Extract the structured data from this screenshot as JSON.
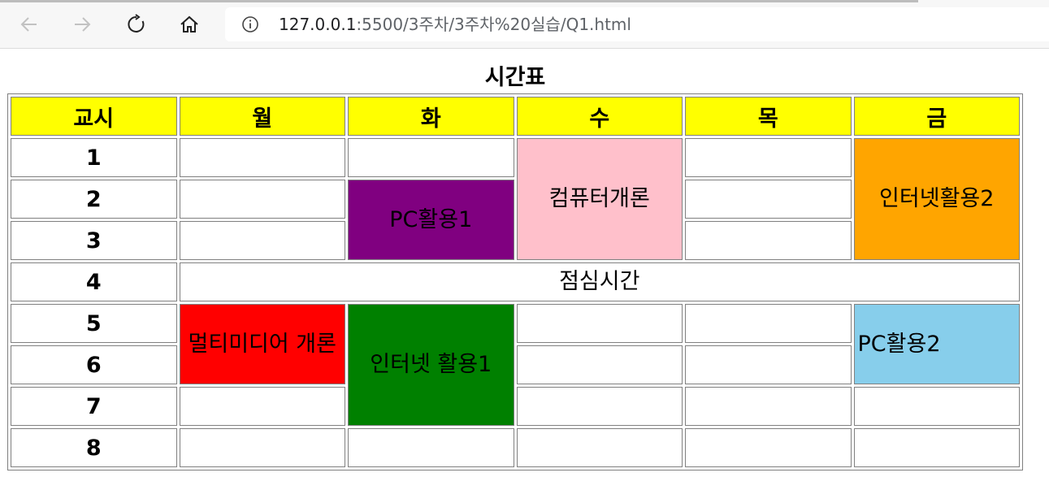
{
  "browser": {
    "url_host": "127.0.0.1",
    "url_path": ":5500/3주차/3주차%20실습/Q1.html",
    "back_icon": "back-arrow-icon",
    "forward_icon": "forward-arrow-icon",
    "reload_icon": "reload-icon",
    "home_icon": "home-icon",
    "info_icon": "info-icon"
  },
  "timetable": {
    "title": "시간표",
    "headers": [
      "교시",
      "월",
      "화",
      "수",
      "목",
      "금"
    ],
    "periods": [
      "1",
      "2",
      "3",
      "4",
      "5",
      "6",
      "7",
      "8"
    ],
    "subjects": {
      "pc1": "PC활용1",
      "computer_intro": "컴퓨터개론",
      "internet2": "인터넷활용2",
      "lunch": "점심시간",
      "multimedia": "멀티미디어 개론",
      "internet1": "인터넷 활용1",
      "pc2": "PC활용2"
    }
  },
  "colors": {
    "header_bg": "#ffff00",
    "pc1": "#800080",
    "computer_intro": "#ffc0cb",
    "internet2": "#ffa500",
    "multimedia": "#ff0000",
    "internet1": "#008000",
    "pc2": "#87ceeb",
    "border": "#808080"
  }
}
